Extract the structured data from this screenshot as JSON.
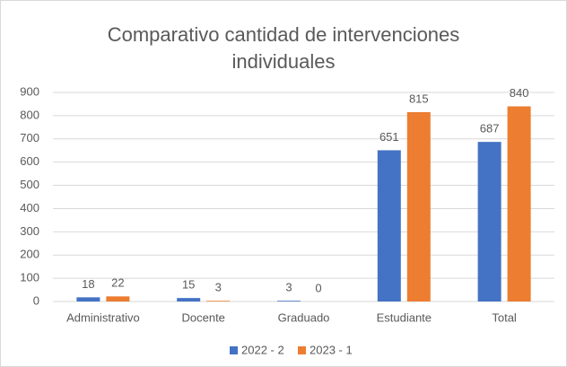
{
  "chart_data": {
    "type": "bar",
    "title": "Comparativo cantidad de intervenciones individuales",
    "categories": [
      "Administrativo",
      "Docente",
      "Graduado",
      "Estudiante",
      "Total"
    ],
    "series": [
      {
        "name": "2022 - 2",
        "color": "#4472c4",
        "values": [
          18,
          15,
          3,
          651,
          687
        ]
      },
      {
        "name": "2023 - 1",
        "color": "#ed7d31",
        "values": [
          22,
          3,
          0,
          815,
          840
        ]
      }
    ],
    "ylim": [
      0,
      900
    ],
    "yticks": [
      0,
      100,
      200,
      300,
      400,
      500,
      600,
      700,
      800,
      900
    ],
    "grid": true,
    "legend": "bottom"
  }
}
